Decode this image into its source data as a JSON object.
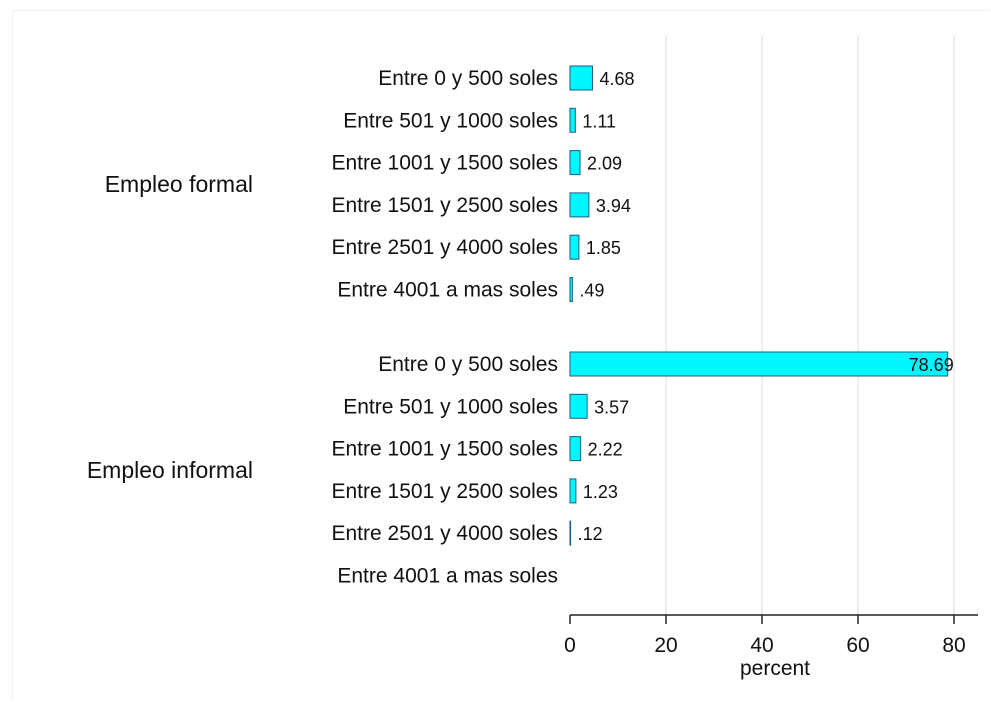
{
  "chart_data": {
    "type": "bar",
    "orientation": "horizontal",
    "title": "",
    "xlabel": "percent",
    "ylabel": "",
    "xlim": [
      0,
      85
    ],
    "xticks": [
      0,
      20,
      40,
      60,
      80
    ],
    "grid": true,
    "colors": {
      "bar_fill": "#00f5ff",
      "bar_stroke": "#1a5f80",
      "grid": "#e3ebee",
      "axis": "#222222"
    },
    "groups": [
      {
        "name": "Empleo formal",
        "categories": [
          "Entre 0 y 500 soles",
          "Entre 501 y 1000 soles",
          "Entre 1001 y 1500 soles",
          "Entre 1501 y 2500 soles",
          "Entre 2501 y 4000 soles",
          "Entre 4001 a mas soles"
        ],
        "values": [
          4.68,
          1.11,
          2.09,
          3.94,
          1.85,
          0.49
        ],
        "labels": [
          "4.68",
          "1.11",
          "2.09",
          "3.94",
          "1.85",
          ".49"
        ]
      },
      {
        "name": "Empleo informal",
        "categories": [
          "Entre 0 y 500 soles",
          "Entre 501 y 1000 soles",
          "Entre 1001 y 1500 soles",
          "Entre 1501 y 2500 soles",
          "Entre 2501 y 4000 soles",
          "Entre 4001 a mas soles"
        ],
        "values": [
          78.69,
          3.57,
          2.22,
          1.23,
          0.12,
          null
        ],
        "labels": [
          "78.69",
          "3.57",
          "2.22",
          "1.23",
          ".12",
          ""
        ]
      }
    ]
  }
}
